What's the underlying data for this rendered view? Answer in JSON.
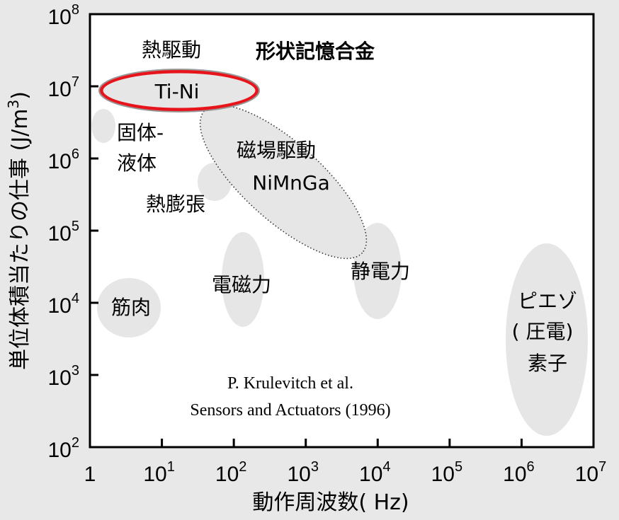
{
  "chart_data": {
    "type": "scatter",
    "xlabel": "動作周波数( Hz)",
    "ylabel": "単位体積当たりの仕事 (J/m³)",
    "ylabel_main": "単位体積当たりの仕事 (J/m",
    "ylabel_sup": "3",
    "ylabel_close": ")",
    "x_scale": "log",
    "y_scale": "log",
    "xlim": [
      1,
      10000000
    ],
    "ylim": [
      100,
      100000000
    ],
    "x_ticks": [
      {
        "base": "1",
        "exp": ""
      },
      {
        "base": "10",
        "exp": "1"
      },
      {
        "base": "10",
        "exp": "2"
      },
      {
        "base": "10",
        "exp": "3"
      },
      {
        "base": "10",
        "exp": "4"
      },
      {
        "base": "10",
        "exp": "5"
      },
      {
        "base": "10",
        "exp": "6"
      },
      {
        "base": "10",
        "exp": "7"
      }
    ],
    "y_ticks": [
      {
        "base": "10",
        "exp": "2"
      },
      {
        "base": "10",
        "exp": "3"
      },
      {
        "base": "10",
        "exp": "4"
      },
      {
        "base": "10",
        "exp": "5"
      },
      {
        "base": "10",
        "exp": "6"
      },
      {
        "base": "10",
        "exp": "7"
      },
      {
        "base": "10",
        "exp": "8"
      }
    ],
    "grid": false,
    "regions": [
      {
        "id": "tini",
        "x_range": [
          1.5,
          100
        ],
        "y_range": [
          3700000,
          17000000
        ],
        "style": "highlight",
        "highlight_color": "#e8141c"
      },
      {
        "id": "magnetic",
        "x_range": [
          6,
          4000
        ],
        "y_range": [
          50000,
          5000000
        ],
        "style": "dotted"
      },
      {
        "id": "solid-liquid",
        "x_range": [
          1,
          2
        ],
        "y_range": [
          1400000,
          5000000
        ],
        "style": "filled"
      },
      {
        "id": "thermal-expansion",
        "x_range": [
          30,
          100
        ],
        "y_range": [
          250000,
          1000000
        ],
        "style": "filled"
      },
      {
        "id": "electromagnetic",
        "x_range": [
          60,
          300
        ],
        "y_range": [
          7000,
          180000
        ],
        "style": "filled"
      },
      {
        "id": "electrostatic",
        "x_range": [
          5000,
          30000
        ],
        "y_range": [
          10000,
          180000
        ],
        "style": "filled"
      },
      {
        "id": "muscle",
        "x_range": [
          1.1,
          10
        ],
        "y_range": [
          5000,
          30000
        ],
        "style": "filled"
      },
      {
        "id": "piezo",
        "x_range": [
          700000,
          10000000
        ],
        "y_range": [
          200,
          900000
        ],
        "style": "filled"
      }
    ],
    "labels": {
      "thermal_drive": "熱駆動",
      "sma": "形状記憶合金",
      "tini": "Ti-Ni",
      "solid_liquid_1": "固体-",
      "solid_liquid_2": "液体",
      "magnetic_drive": "磁場駆動",
      "nimnga": "NiMnGa",
      "thermal_expansion": "熱膨張",
      "electromagnetic": "電磁力",
      "electrostatic": "静電力",
      "muscle": "筋肉",
      "piezo_1": "ピエゾ",
      "piezo_2": "( 圧電)",
      "piezo_3": "素子"
    },
    "annotation": [
      "P. Krulevitch et al.",
      "Sensors and Actuators (1996)"
    ]
  }
}
